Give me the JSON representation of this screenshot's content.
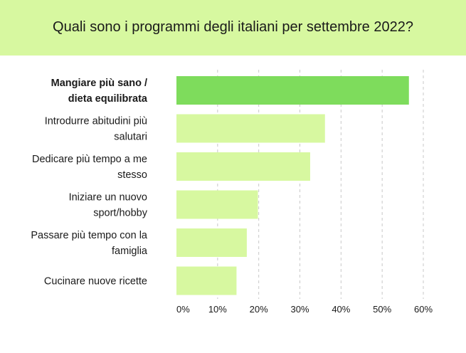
{
  "header": {
    "title": "Quali sono i programmi degli italiani per settembre 2022?"
  },
  "colors": {
    "header_bg": "#d7f8a0",
    "highlight_bar": "#7edc5c",
    "bar": "#d7f8a0",
    "grid": "#c8c8c8"
  },
  "chart_data": {
    "type": "bar",
    "orientation": "horizontal",
    "title": "Quali sono i programmi degli italiani per settembre 2022?",
    "categories": [
      [
        "Mangiare più sano /",
        "dieta equilibrata"
      ],
      [
        "Introdurre abitudini più",
        "salutari"
      ],
      [
        "Dedicare più tempo a me",
        "stesso"
      ],
      [
        "Iniziare un nuovo",
        "sport/hobby"
      ],
      [
        "Passare più tempo con la",
        "famiglia"
      ],
      [
        "Cucinare nuove ricette"
      ]
    ],
    "values": [
      56.5,
      36.1,
      32.5,
      19.8,
      17.1,
      14.6
    ],
    "highlight_index": 0,
    "xlim": [
      0,
      60
    ],
    "xticks": [
      0,
      10,
      20,
      30,
      40,
      50,
      60
    ],
    "xtick_labels": [
      "0%",
      "10%",
      "20%",
      "30%",
      "40%",
      "50%",
      "60%"
    ],
    "grid": true,
    "grid_style": "dashed-vertical"
  }
}
